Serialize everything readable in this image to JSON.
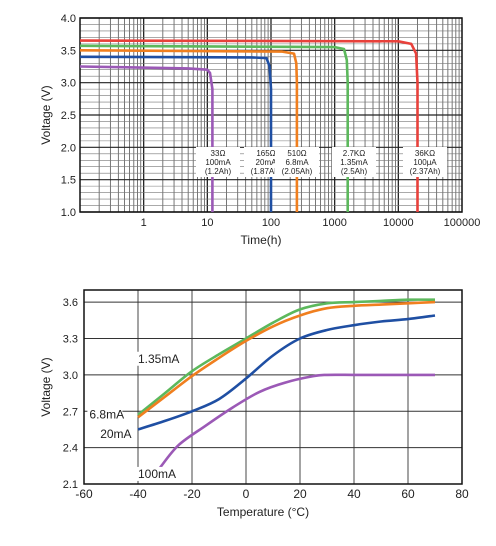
{
  "chart_data": [
    {
      "type": "line",
      "xlabel": "Time(h)",
      "ylabel": "Voltage (V)",
      "x_scale": "log",
      "xlim": [
        0.1,
        100000
      ],
      "ylim": [
        1.0,
        4.0
      ],
      "grid": true,
      "x_ticks": [
        {
          "v": 1,
          "label": "1"
        },
        {
          "v": 10,
          "label": "10"
        },
        {
          "v": 100,
          "label": "100"
        },
        {
          "v": 1000,
          "label": "1000"
        },
        {
          "v": 10000,
          "label": "10000"
        },
        {
          "v": 100000,
          "label": "100000"
        }
      ],
      "y_ticks": [
        "1.0",
        "1.5",
        "2.0",
        "2.5",
        "3.0",
        "3.5",
        "4.0"
      ],
      "series": [
        {
          "color": "#9b59b6",
          "x": [
            0.1,
            5,
            10,
            11,
            12,
            12,
            12
          ],
          "y": [
            3.25,
            3.22,
            3.2,
            3.15,
            2.9,
            2.2,
            1.0
          ],
          "label": [
            "33Ω",
            "100mA",
            "(1.2Ah)"
          ]
        },
        {
          "color": "#1f4fa3",
          "x": [
            0.1,
            50,
            85,
            95,
            100,
            100
          ],
          "y": [
            3.4,
            3.39,
            3.38,
            3.25,
            2.9,
            1.0
          ],
          "label": [
            "165Ω",
            "20mA",
            "(1.87Ah)"
          ]
        },
        {
          "color": "#f07f1f",
          "x": [
            0.1,
            150,
            230,
            250,
            255,
            255
          ],
          "y": [
            3.5,
            3.48,
            3.45,
            3.3,
            3.0,
            1.0
          ],
          "label": [
            "510Ω",
            "6.8mA",
            "(2.05Ah)"
          ]
        },
        {
          "color": "#5cb85c",
          "x": [
            0.1,
            1000,
            1400,
            1550,
            1600,
            1600
          ],
          "y": [
            3.57,
            3.55,
            3.52,
            3.35,
            3.0,
            1.0
          ],
          "label": [
            "2.7KΩ",
            "1.35mA",
            "(2.5Ah)"
          ]
        },
        {
          "color": "#e8413b",
          "x": [
            0.1,
            10000,
            16000,
            19000,
            20000,
            20000
          ],
          "y": [
            3.65,
            3.64,
            3.6,
            3.45,
            3.0,
            1.0
          ],
          "label": [
            "36KΩ",
            "100μA",
            "(2.37Ah)"
          ]
        }
      ]
    },
    {
      "type": "line",
      "xlabel": "Temperature (°C)",
      "ylabel": "Voltage (V)",
      "xlim": [
        -60,
        80
      ],
      "ylim": [
        2.1,
        3.7
      ],
      "grid": true,
      "x_ticks": [
        "-60",
        "-40",
        "-20",
        "0",
        "20",
        "40",
        "60",
        "80"
      ],
      "y_ticks": [
        "2.1",
        "2.4",
        "2.7",
        "3.0",
        "3.3",
        "3.6"
      ],
      "series": [
        {
          "name": "1.35mA",
          "color": "#5cb85c",
          "x": [
            -40,
            -30,
            -20,
            -10,
            0,
            10,
            20,
            30,
            40,
            50,
            60,
            70
          ],
          "y": [
            2.67,
            2.85,
            3.03,
            3.17,
            3.3,
            3.43,
            3.54,
            3.59,
            3.6,
            3.61,
            3.62,
            3.62
          ]
        },
        {
          "name": "6.8mA",
          "color": "#f07f1f",
          "x": [
            -40,
            -30,
            -20,
            -10,
            0,
            10,
            20,
            30,
            40,
            50,
            60,
            70
          ],
          "y": [
            2.65,
            2.82,
            2.99,
            3.14,
            3.28,
            3.4,
            3.49,
            3.55,
            3.57,
            3.58,
            3.59,
            3.6
          ]
        },
        {
          "name": "20mA",
          "color": "#1f4fa3",
          "x": [
            -40,
            -30,
            -20,
            -10,
            0,
            10,
            20,
            30,
            40,
            50,
            60,
            70
          ],
          "y": [
            2.55,
            2.62,
            2.7,
            2.8,
            2.97,
            3.16,
            3.3,
            3.37,
            3.41,
            3.44,
            3.46,
            3.49
          ]
        },
        {
          "name": "100mA",
          "color": "#9b59b6",
          "x": [
            -32,
            -25,
            -15,
            -5,
            5,
            15,
            25,
            30,
            40,
            50,
            60,
            70
          ],
          "y": [
            2.23,
            2.42,
            2.58,
            2.73,
            2.86,
            2.94,
            2.99,
            3.0,
            3.0,
            3.0,
            3.0,
            3.0
          ]
        }
      ],
      "annotations": [
        {
          "text": "1.35mA",
          "x": -40,
          "y": 3.1
        },
        {
          "text": "6.8mA",
          "x": -58,
          "y": 2.64
        },
        {
          "text": "20mA",
          "x": -54,
          "y": 2.48
        },
        {
          "text": "100mA",
          "x": -40,
          "y": 2.15
        }
      ]
    }
  ]
}
